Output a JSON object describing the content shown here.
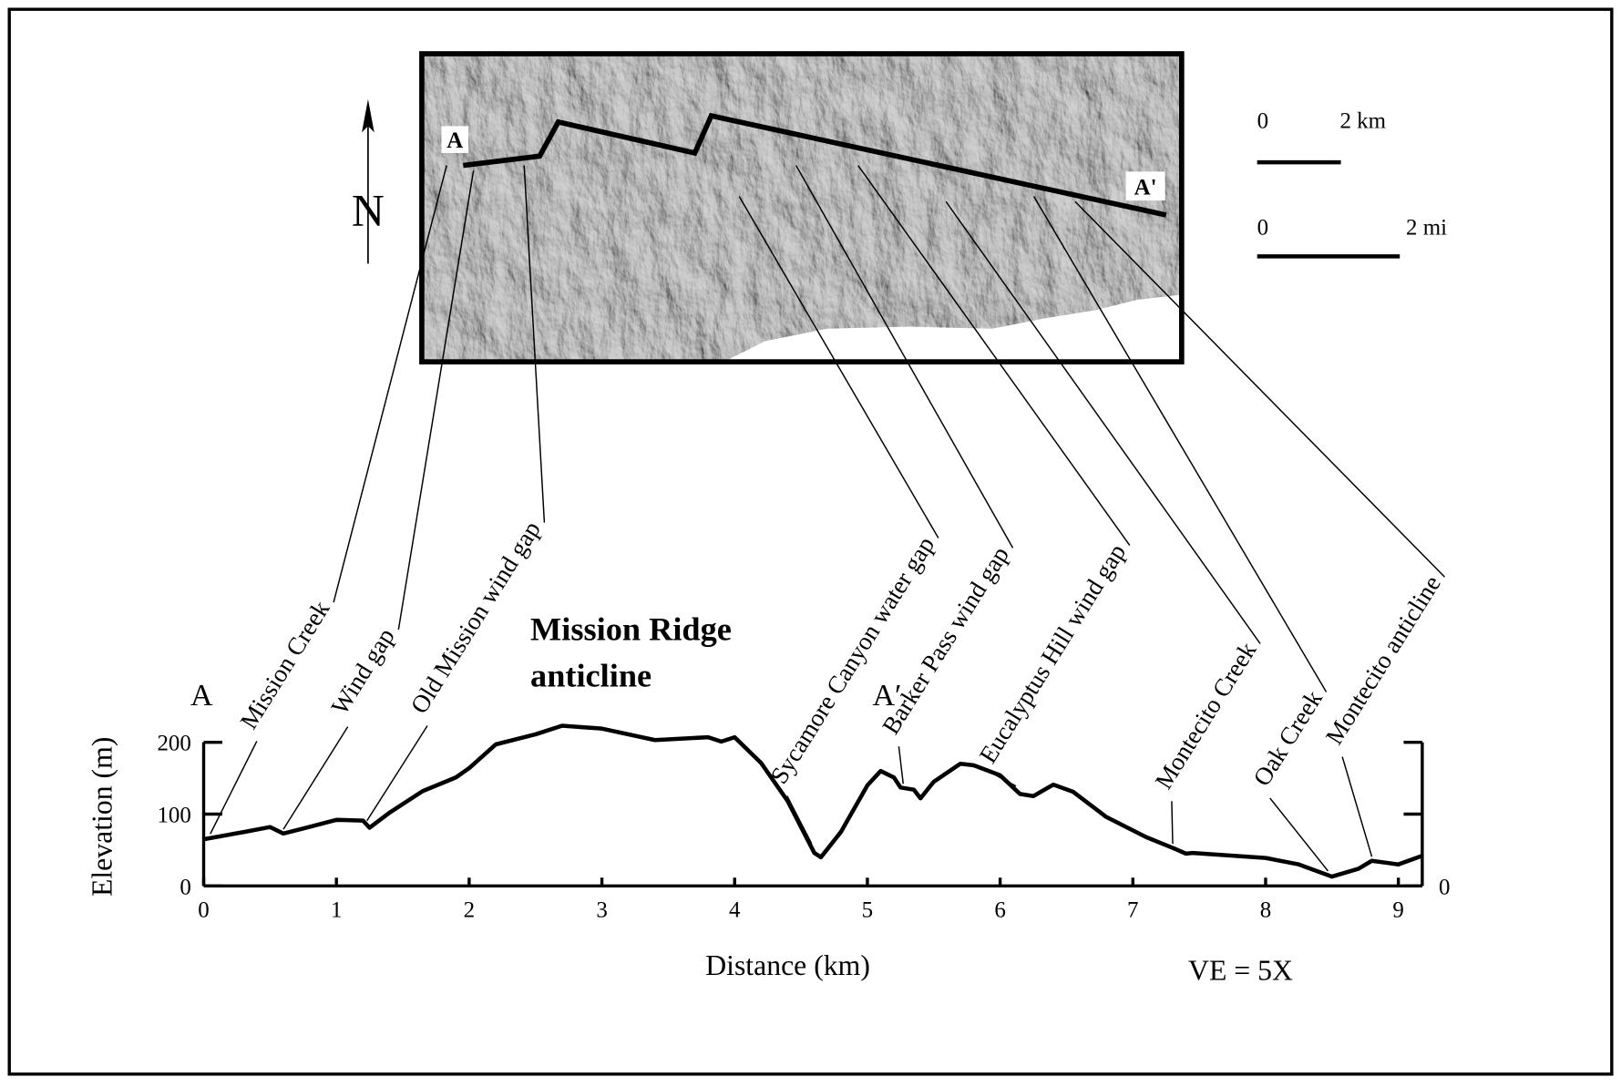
{
  "chart_data": {
    "type": "line",
    "title_lines": [
      "Mission Ridge",
      "anticline"
    ],
    "xlabel": "Distance (km)",
    "ylabel": "Elevation (m)",
    "start_label": "A",
    "end_label": "A′",
    "note": "VE = 5X",
    "x": [
      0,
      0.3,
      0.5,
      0.6,
      0.75,
      1.0,
      1.2,
      1.25,
      1.4,
      1.65,
      1.9,
      2.0,
      2.2,
      2.5,
      2.7,
      3.0,
      3.4,
      3.8,
      3.9,
      4.0,
      4.2,
      4.4,
      4.6,
      4.65,
      4.8,
      5.0,
      5.1,
      5.2,
      5.25,
      5.35,
      5.4,
      5.5,
      5.7,
      5.8,
      6.0,
      6.15,
      6.25,
      6.4,
      6.55,
      6.8,
      7.1,
      7.3,
      7.4,
      7.45,
      8.0,
      8.25,
      8.5,
      8.7,
      8.8,
      9.0,
      9.18
    ],
    "series": [
      {
        "color": "#000000",
        "values": [
          65,
          75,
          82,
          73,
          80,
          92,
          91,
          81,
          102,
          132,
          151,
          164,
          197,
          211,
          223,
          219,
          203,
          207,
          201,
          207,
          171,
          118,
          46,
          40,
          75,
          140,
          160,
          151,
          137,
          134,
          122,
          145,
          170,
          168,
          154,
          128,
          125,
          141,
          131,
          96,
          68,
          53,
          45,
          46,
          39,
          30,
          13,
          24,
          35,
          30,
          42
        ]
      }
    ],
    "xlim": [
      0,
      9.18
    ],
    "xticks": [
      0,
      1,
      2,
      3,
      4,
      5,
      6,
      7,
      8,
      9
    ],
    "ylim": [
      0,
      200
    ],
    "yticks": [
      0,
      100,
      200
    ],
    "annotations": [
      {
        "text": "Mission Creek",
        "x": 0.05
      },
      {
        "text": "Wind gap",
        "x": 0.6
      },
      {
        "text": "Old Mission wind gap",
        "x": 1.23
      },
      {
        "text": "Sycamore Canyon water gap",
        "x": 4.58
      },
      {
        "text": "Barker Pass wind gap",
        "x": 5.27
      },
      {
        "text": "Eucalyptus Hill wind gap",
        "x": 6.12
      },
      {
        "text": "Montecito Creek",
        "x": 7.3
      },
      {
        "text": "Oak Creek",
        "x": 8.47
      },
      {
        "text": "Montecito anticline",
        "x": 8.8
      }
    ]
  },
  "map": {
    "north": "N",
    "start_label": "A",
    "end_label": "A'",
    "scale_km": {
      "zero": "0",
      "label": "2 km"
    },
    "scale_mi": {
      "zero": "0",
      "label": "2 mi"
    }
  }
}
